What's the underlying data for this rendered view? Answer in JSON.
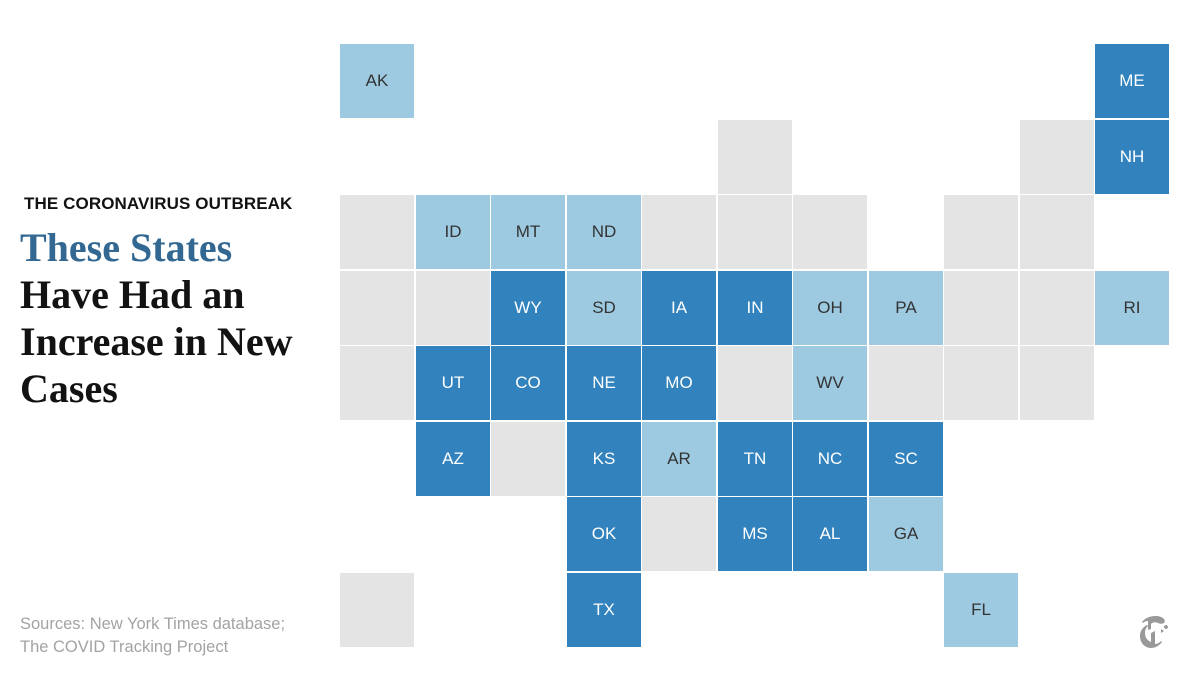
{
  "header": {
    "kicker": "THE CORONAVIRUS OUTBREAK",
    "headline_highlight": "These States",
    "headline_rest": "Have Had an Increase in New Cases"
  },
  "source": {
    "line1": "Sources: New York Times database;",
    "line2": "The COVID Tracking Project"
  },
  "logo": {
    "icon": "nyt-t-logo-icon"
  },
  "colors": {
    "high": "#3182bd",
    "moderate": "#9ecae1",
    "none": "#e4e4e4",
    "label_light": "#ffffff",
    "label_dark": "#333333",
    "logo": "#999999"
  },
  "tiles": [
    {
      "label": "AK",
      "col": 0,
      "row": 0,
      "level": "moderate"
    },
    {
      "label": "ME",
      "col": 10,
      "row": 0,
      "level": "high"
    },
    {
      "label": "",
      "col": 5,
      "row": 1,
      "level": "none"
    },
    {
      "label": "",
      "col": 9,
      "row": 1,
      "level": "none"
    },
    {
      "label": "NH",
      "col": 10,
      "row": 1,
      "level": "high"
    },
    {
      "label": "",
      "col": 0,
      "row": 2,
      "level": "none"
    },
    {
      "label": "ID",
      "col": 1,
      "row": 2,
      "level": "moderate"
    },
    {
      "label": "MT",
      "col": 2,
      "row": 2,
      "level": "moderate"
    },
    {
      "label": "ND",
      "col": 3,
      "row": 2,
      "level": "moderate"
    },
    {
      "label": "",
      "col": 4,
      "row": 2,
      "level": "none"
    },
    {
      "label": "",
      "col": 5,
      "row": 2,
      "level": "none"
    },
    {
      "label": "",
      "col": 6,
      "row": 2,
      "level": "none"
    },
    {
      "label": "",
      "col": 8,
      "row": 2,
      "level": "none"
    },
    {
      "label": "",
      "col": 9,
      "row": 2,
      "level": "none"
    },
    {
      "label": "",
      "col": 0,
      "row": 3,
      "level": "none"
    },
    {
      "label": "",
      "col": 1,
      "row": 3,
      "level": "none"
    },
    {
      "label": "WY",
      "col": 2,
      "row": 3,
      "level": "high"
    },
    {
      "label": "SD",
      "col": 3,
      "row": 3,
      "level": "moderate"
    },
    {
      "label": "IA",
      "col": 4,
      "row": 3,
      "level": "high"
    },
    {
      "label": "IN",
      "col": 5,
      "row": 3,
      "level": "high"
    },
    {
      "label": "OH",
      "col": 6,
      "row": 3,
      "level": "moderate"
    },
    {
      "label": "PA",
      "col": 7,
      "row": 3,
      "level": "moderate"
    },
    {
      "label": "",
      "col": 8,
      "row": 3,
      "level": "none"
    },
    {
      "label": "",
      "col": 9,
      "row": 3,
      "level": "none"
    },
    {
      "label": "RI",
      "col": 10,
      "row": 3,
      "level": "moderate"
    },
    {
      "label": "",
      "col": 0,
      "row": 4,
      "level": "none"
    },
    {
      "label": "UT",
      "col": 1,
      "row": 4,
      "level": "high"
    },
    {
      "label": "CO",
      "col": 2,
      "row": 4,
      "level": "high"
    },
    {
      "label": "NE",
      "col": 3,
      "row": 4,
      "level": "high"
    },
    {
      "label": "MO",
      "col": 4,
      "row": 4,
      "level": "high"
    },
    {
      "label": "",
      "col": 5,
      "row": 4,
      "level": "none"
    },
    {
      "label": "WV",
      "col": 6,
      "row": 4,
      "level": "moderate"
    },
    {
      "label": "",
      "col": 7,
      "row": 4,
      "level": "none"
    },
    {
      "label": "",
      "col": 8,
      "row": 4,
      "level": "none"
    },
    {
      "label": "",
      "col": 9,
      "row": 4,
      "level": "none"
    },
    {
      "label": "AZ",
      "col": 1,
      "row": 5,
      "level": "high"
    },
    {
      "label": "",
      "col": 2,
      "row": 5,
      "level": "none"
    },
    {
      "label": "KS",
      "col": 3,
      "row": 5,
      "level": "high"
    },
    {
      "label": "AR",
      "col": 4,
      "row": 5,
      "level": "moderate"
    },
    {
      "label": "TN",
      "col": 5,
      "row": 5,
      "level": "high"
    },
    {
      "label": "NC",
      "col": 6,
      "row": 5,
      "level": "high"
    },
    {
      "label": "SC",
      "col": 7,
      "row": 5,
      "level": "high"
    },
    {
      "label": "OK",
      "col": 3,
      "row": 6,
      "level": "high"
    },
    {
      "label": "",
      "col": 4,
      "row": 6,
      "level": "none"
    },
    {
      "label": "MS",
      "col": 5,
      "row": 6,
      "level": "high"
    },
    {
      "label": "AL",
      "col": 6,
      "row": 6,
      "level": "high"
    },
    {
      "label": "GA",
      "col": 7,
      "row": 6,
      "level": "moderate"
    },
    {
      "label": "",
      "col": 0,
      "row": 7,
      "level": "none"
    },
    {
      "label": "TX",
      "col": 3,
      "row": 7,
      "level": "high"
    },
    {
      "label": "FL",
      "col": 8,
      "row": 7,
      "level": "moderate"
    }
  ]
}
